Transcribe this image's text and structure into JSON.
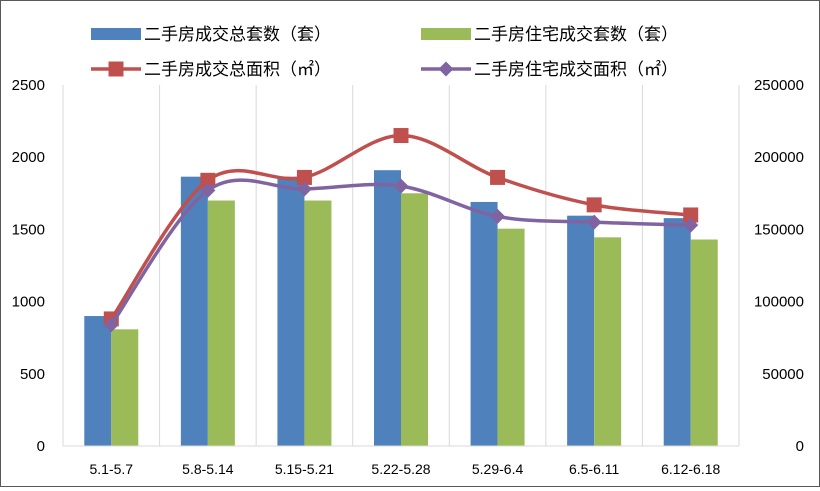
{
  "chart_data": {
    "type": "bar",
    "categories": [
      "5.1-5.7",
      "5.8-5.14",
      "5.15-5.21",
      "5.22-5.28",
      "5.29-6.4",
      "6.5-6.11",
      "6.12-6.18"
    ],
    "series": [
      {
        "name": "二手房成交总套数（套）",
        "type": "bar",
        "axis": "left",
        "color": "#4f81bd",
        "values": [
          900,
          1865,
          1865,
          1910,
          1690,
          1595,
          1578
        ]
      },
      {
        "name": "二手房住宅成交套数（套）",
        "type": "bar",
        "axis": "left",
        "color": "#9bbb59",
        "values": [
          808,
          1700,
          1700,
          1750,
          1505,
          1445,
          1430
        ]
      },
      {
        "name": "二手房成交总面积（㎡）",
        "type": "line",
        "axis": "right",
        "marker": "square",
        "color": "#c0504d",
        "values": [
          88000,
          184000,
          186000,
          215000,
          186000,
          167000,
          160000
        ]
      },
      {
        "name": "二手房住宅成交面积（㎡）",
        "type": "line",
        "axis": "right",
        "marker": "diamond",
        "color": "#8064a2",
        "values": [
          84000,
          177000,
          178000,
          180000,
          159000,
          155000,
          153000
        ]
      }
    ],
    "y_left": {
      "lim": [
        0,
        2500
      ],
      "ticks": [
        "0",
        "500",
        "1000",
        "1500",
        "2000",
        "2500"
      ]
    },
    "y_right": {
      "lim": [
        0,
        250000
      ],
      "ticks": [
        "0",
        "50000",
        "100000",
        "150000",
        "200000",
        "250000"
      ]
    },
    "grid": "vertical category separators",
    "legend_position": "top"
  }
}
